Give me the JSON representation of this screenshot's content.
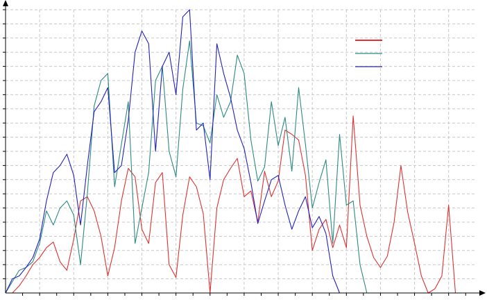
{
  "chart_data": {
    "type": "line",
    "title": "",
    "xlabel": "",
    "ylabel": "",
    "xlim": [
      0,
      69
    ],
    "ylim": [
      0,
      20
    ],
    "grid": true,
    "legend_position": "top-right",
    "x": [
      0,
      1,
      2,
      3,
      4,
      5,
      6,
      7,
      8,
      9,
      10,
      11,
      12,
      13,
      14,
      15,
      16,
      17,
      18,
      19,
      20,
      21,
      22,
      23,
      24,
      25,
      26,
      27,
      28,
      29,
      30,
      31,
      32,
      33,
      34,
      35,
      36,
      37,
      38,
      39,
      40,
      41,
      42,
      43,
      44,
      45,
      46,
      47,
      48,
      49,
      50,
      51,
      52,
      53,
      54,
      55,
      56,
      57,
      58,
      59,
      60,
      61,
      62,
      63,
      64,
      65,
      66,
      67
    ],
    "series": [
      {
        "color": "#e03030",
        "values": [
          0,
          0,
          0.5,
          1.2,
          2,
          2.5,
          3.2,
          3.6,
          2.2,
          1.6,
          3.8,
          6.5,
          6.8,
          5.8,
          4,
          1.2,
          3.2,
          6.5,
          8.8,
          8.2,
          4.5,
          3.5,
          7.8,
          8.5,
          2,
          1.1,
          5.5,
          8.2,
          7.5,
          5.6,
          0,
          6,
          8,
          8.8,
          9.5,
          6.8,
          7.2,
          5,
          8.6,
          6.8,
          7.9,
          11.5,
          11.2,
          10.8,
          8.3,
          3,
          4.5,
          5.2,
          3.2,
          4.8,
          3.2,
          12.5,
          6.2,
          4,
          2.5,
          1.8,
          2.6,
          5,
          9,
          5.7,
          3.5,
          1.2,
          0,
          0.3,
          1.2,
          6.2,
          0,
          0
        ]
      },
      {
        "color": "#2a8a80",
        "values": [
          0,
          0.8,
          1.6,
          1.8,
          2.2,
          3.5,
          5.8,
          4.8,
          6,
          6.5,
          5.5,
          2,
          7,
          13.2,
          15,
          15.5,
          7.5,
          10.5,
          13.5,
          3.5,
          6,
          8.5,
          15,
          16,
          10,
          8.2,
          14.4,
          17.8,
          12,
          11.8,
          10.6,
          14,
          12.4,
          13.5,
          16.8,
          15.5,
          10.8,
          7.9,
          8.9,
          13.5,
          10.4,
          12.4,
          8.6,
          14.5,
          10.5,
          6,
          7.8,
          9.4,
          3.5,
          11.2,
          6.2,
          6.5,
          2,
          0,
          0,
          0,
          0,
          0,
          0,
          0,
          0,
          0,
          0,
          0,
          0,
          0,
          0,
          0
        ]
      },
      {
        "color": "#2020c0",
        "values": [
          0,
          1,
          1.2,
          1.8,
          2.5,
          3.8,
          6.5,
          8.5,
          9,
          9.8,
          8.3,
          4.8,
          9,
          12.8,
          13.5,
          14.5,
          8.5,
          9,
          12.2,
          17,
          18.5,
          17.6,
          10,
          16,
          17,
          14,
          19.5,
          20,
          11.5,
          12,
          8,
          17.6,
          15.5,
          13.8,
          11.5,
          10.2,
          7.8,
          4.9,
          6.5,
          8,
          8.3,
          6.2,
          4.5,
          5.8,
          6.8,
          4.6,
          5.4,
          4.2,
          1.2,
          0,
          0,
          0,
          0,
          0,
          0,
          0,
          0,
          0,
          0,
          0,
          0,
          0,
          0,
          0,
          0,
          0,
          0,
          0
        ]
      }
    ]
  }
}
